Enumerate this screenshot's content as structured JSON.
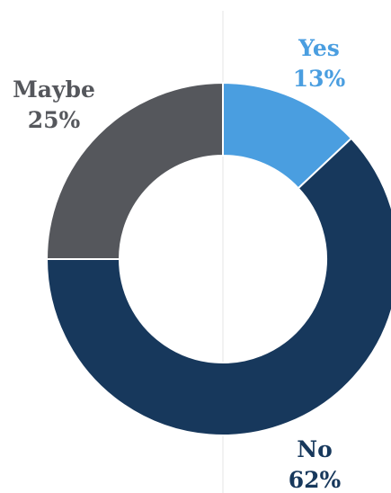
{
  "chart_data": {
    "type": "pie",
    "title": "",
    "categories": [
      "Yes",
      "No",
      "Maybe"
    ],
    "values": [
      13,
      62,
      25
    ],
    "labels": [
      {
        "name": "Yes",
        "value": "13%"
      },
      {
        "name": "No",
        "value": "62%"
      },
      {
        "name": "Maybe",
        "value": "25%"
      }
    ],
    "colors": [
      "#4a9ee0",
      "#17385c",
      "#55575c"
    ],
    "label_colors": [
      "#4a9ee0",
      "#17385c",
      "#55575c"
    ],
    "hole": "donut"
  }
}
